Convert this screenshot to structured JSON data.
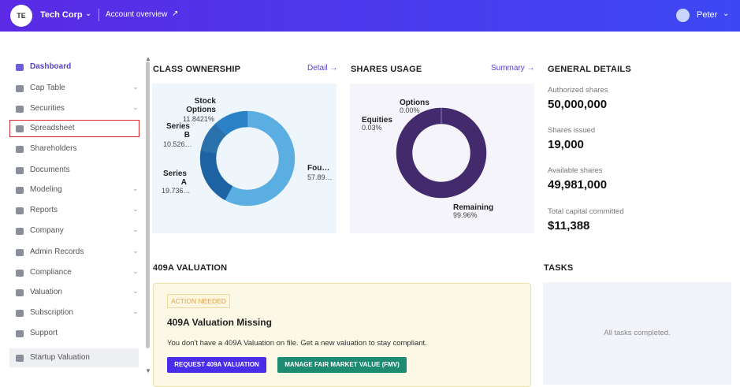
{
  "header": {
    "avatar": "TE",
    "company": "Tech Corp",
    "account_link": "Account overview",
    "user": "Peter"
  },
  "sidebar": {
    "items": [
      "Dashboard",
      "Cap Table",
      "Securities",
      "Spreadsheet",
      "Shareholders",
      "Documents",
      "Modeling",
      "Reports",
      "Company",
      "Admin Records",
      "Compliance",
      "Valuation",
      "Subscription",
      "Support",
      "Startup Valuation"
    ]
  },
  "class_ownership": {
    "title": "CLASS OWNERSHIP",
    "link": "Detail",
    "chart_data": {
      "type": "pie",
      "categories": [
        "Fou…",
        "Series A",
        "Series B",
        "Stock Options"
      ],
      "values": [
        57.89,
        19.736,
        10.526,
        11.8421
      ],
      "value_labels": [
        "57.89…",
        "19.736…",
        "10.526…",
        "11.8421%"
      ],
      "colors": [
        "#5aaee2",
        "#1d63a3",
        "#2b72ad",
        "#2a81c6"
      ]
    }
  },
  "shares_usage": {
    "title": "SHARES USAGE",
    "link": "Summary",
    "chart_data": {
      "type": "pie",
      "categories": [
        "Remaining",
        "Equities",
        "Options"
      ],
      "values": [
        99.96,
        0.03,
        0
      ],
      "value_labels": [
        "99.96%",
        "0.03%",
        "0.00%"
      ],
      "colors": [
        "#432a6c",
        "#7b5fb0",
        "#9a86c9"
      ]
    }
  },
  "general_details": {
    "title": "GENERAL DETAILS",
    "items": [
      {
        "label": "Authorized shares",
        "value": "50,000,000"
      },
      {
        "label": "Shares issued",
        "value": "19,000"
      },
      {
        "label": "Available shares",
        "value": "49,981,000"
      },
      {
        "label": "Total capital committed",
        "value": "$11,388"
      }
    ]
  },
  "valuation": {
    "title": "409A VALUATION",
    "badge": "ACTION NEEDED",
    "heading": "409A Valuation Missing",
    "text": "You don't have a 409A Valuation on file. Get a new valuation to stay compliant.",
    "buttons": [
      "REQUEST 409A VALUATION",
      "MANAGE FAIR MARKET VALUE (FMV)"
    ]
  },
  "tasks": {
    "title": "TASKS",
    "empty": "All tasks completed."
  }
}
